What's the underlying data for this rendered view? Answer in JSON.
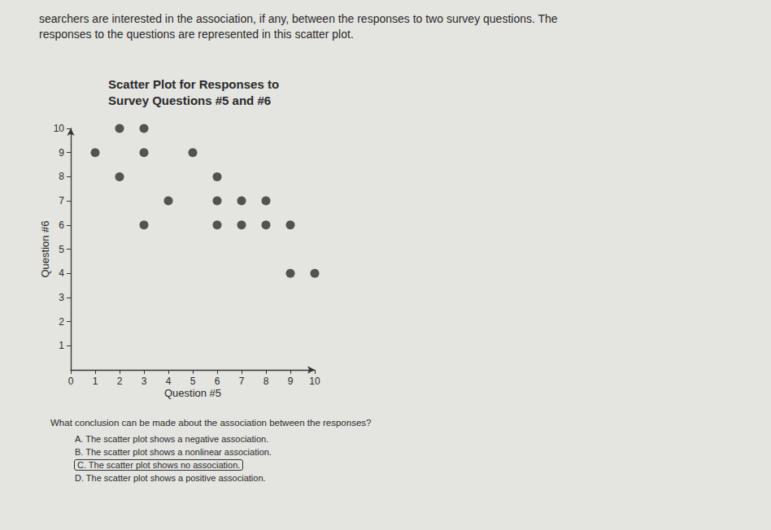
{
  "intro": [
    "searchers are interested in the association, if any, between the responses to two survey questions. The",
    "responses to the questions are represented in this scatter plot."
  ],
  "chart_data": {
    "type": "scatter",
    "title": "Scatter Plot for Responses to\nSurvey Questions #5 and #6",
    "x_label": "Question #5",
    "y_label": "Question #6",
    "x": [
      2,
      3,
      1,
      3,
      5,
      2,
      6,
      4,
      6,
      7,
      8,
      3,
      6,
      7,
      8,
      9,
      9,
      10
    ],
    "values": [
      10,
      10,
      9,
      9,
      9,
      8,
      8,
      7,
      7,
      7,
      7,
      6,
      6,
      6,
      6,
      6,
      4,
      4
    ],
    "color": "#2e2e2e",
    "marker": "circle",
    "xlim": [
      0,
      10
    ],
    "xticks": [
      0,
      1,
      2,
      3,
      4,
      5,
      6,
      7,
      8,
      9,
      10
    ],
    "ylim": [
      0,
      10
    ],
    "yticks": [
      1,
      2,
      3,
      4,
      5,
      6,
      7,
      8,
      9,
      10
    ],
    "grid": false
  },
  "question": "What conclusion can be made about the association between the responses?",
  "options": [
    "A. The scatter plot shows a negative association.",
    "B. The scatter plot shows a nonlinear association.",
    "C. The scatter plot shows no association.",
    "D. The scatter plot shows a positive association."
  ],
  "circled_option": 2
}
